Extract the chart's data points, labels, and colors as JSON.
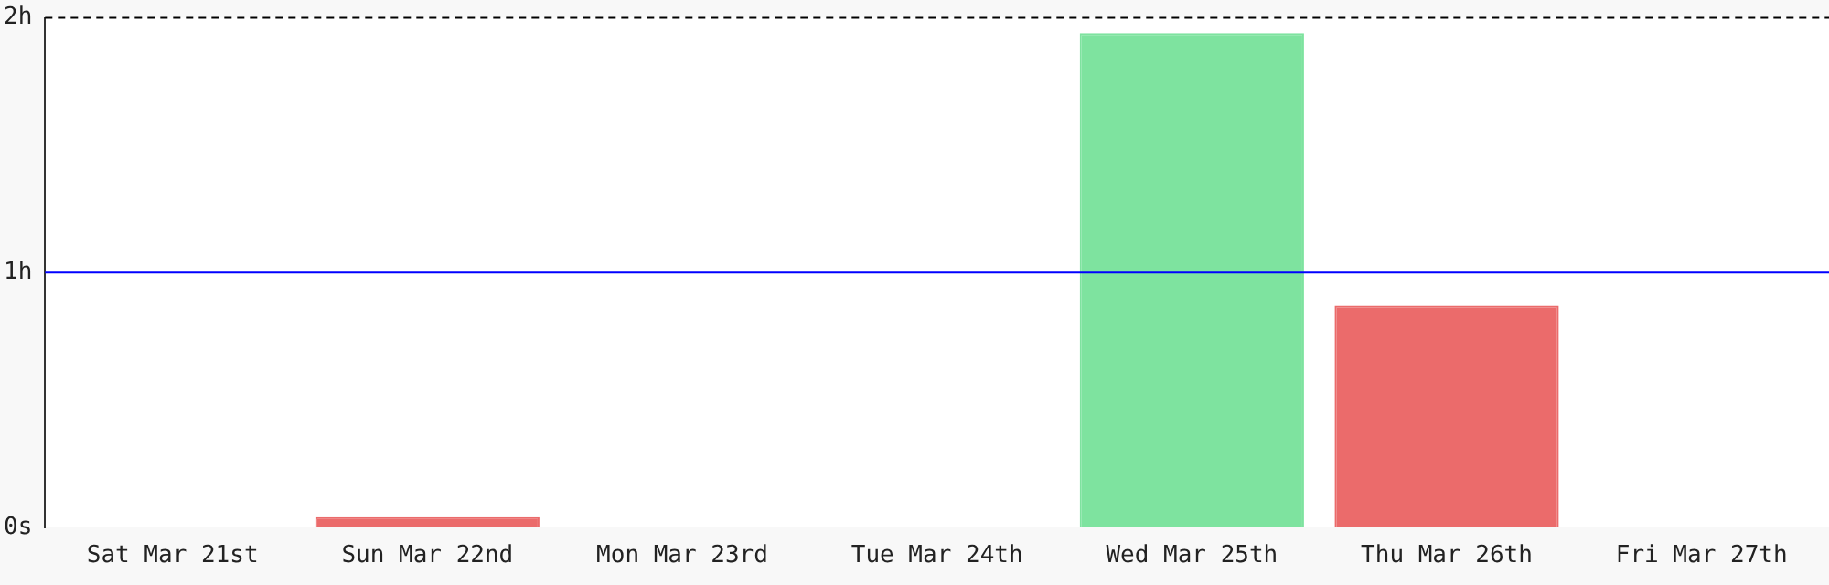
{
  "chart_data": {
    "type": "bar",
    "categories": [
      "Sat Mar 21st",
      "Sun Mar 22nd",
      "Mon Mar 23rd",
      "Tue Mar 24th",
      "Wed Mar 25th",
      "Thu Mar 26th",
      "Fri Mar 27th"
    ],
    "values": [
      0,
      0.04,
      0,
      0,
      1.94,
      0.87,
      0
    ],
    "colors": [
      "#eb6b6b",
      "#eb6b6b",
      "#eb6b6b",
      "#eb6b6b",
      "#7ee39f",
      "#eb6b6b",
      "#eb6b6b"
    ],
    "ylim": [
      0,
      2
    ],
    "yticks": [
      {
        "value": 0,
        "label": "0s"
      },
      {
        "value": 1,
        "label": "1h"
      },
      {
        "value": 2,
        "label": "2h"
      }
    ],
    "grid": false,
    "legend": false,
    "ref_lines": [
      {
        "axis": "y",
        "value": 1,
        "color": "#0000ff",
        "line_style": "solid"
      },
      {
        "axis": "y",
        "value": 2,
        "color": "#000000",
        "line_style": "dashed"
      }
    ]
  }
}
